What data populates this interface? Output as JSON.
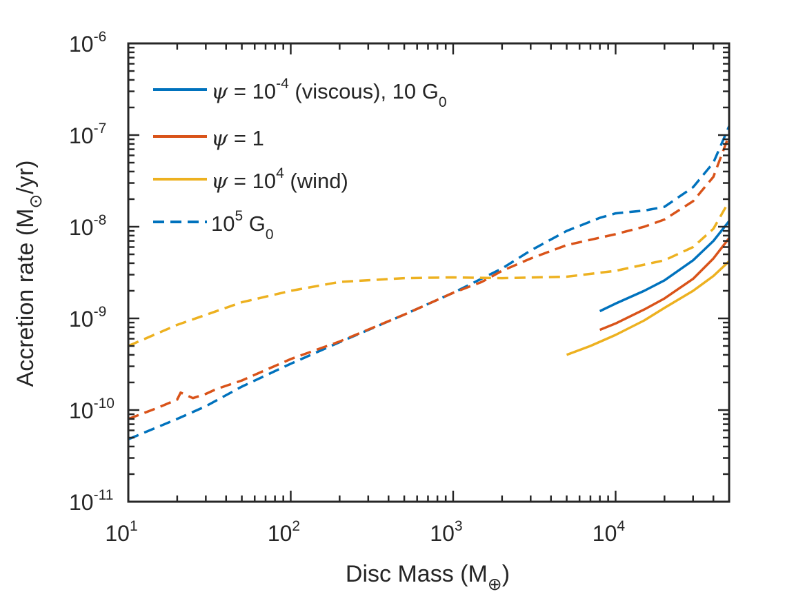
{
  "chart_data": {
    "type": "line",
    "title": "",
    "xscale": "log",
    "yscale": "log",
    "xlim": [
      10,
      50000
    ],
    "ylim": [
      1e-11,
      1e-06
    ],
    "xlabel": {
      "prefix": "Disc Mass (M",
      "subscript": "⊕",
      "suffix": ")"
    },
    "ylabel": {
      "prefix": "Accretion rate (M",
      "subscript": "⊙",
      "suffix": "/yr)"
    },
    "x_ticks": [
      {
        "base": "10",
        "exp": "1",
        "value": 10
      },
      {
        "base": "10",
        "exp": "2",
        "value": 100
      },
      {
        "base": "10",
        "exp": "3",
        "value": 1000
      },
      {
        "base": "10",
        "exp": "4",
        "value": 10000
      }
    ],
    "y_ticks": [
      {
        "base": "10",
        "exp": "-11",
        "value": 1e-11
      },
      {
        "base": "10",
        "exp": "-10",
        "value": 1e-10
      },
      {
        "base": "10",
        "exp": "-9",
        "value": 1e-09
      },
      {
        "base": "10",
        "exp": "-8",
        "value": 1e-08
      },
      {
        "base": "10",
        "exp": "-7",
        "value": 1e-07
      },
      {
        "base": "10",
        "exp": "-6",
        "value": 1e-06
      }
    ],
    "grid": false,
    "legend_position": "top-left",
    "legend": [
      {
        "psi": "ψ",
        "text1": " = 10",
        "sup": "-4",
        "text2": " (viscous), 10 G",
        "sub": "0",
        "color": "#0072BD",
        "dash": "solid"
      },
      {
        "psi": "ψ",
        "text1": " = 1",
        "sup": "",
        "text2": "",
        "sub": "",
        "color": "#D95319",
        "dash": "solid"
      },
      {
        "psi": "ψ",
        "text1": " = 10",
        "sup": "4",
        "text2": " (wind)",
        "sub": "",
        "color": "#EDB120",
        "dash": "solid"
      },
      {
        "psi": "",
        "text1": "10",
        "sup": "5",
        "text2": " G",
        "sub": "0",
        "color": "#0072BD",
        "dash": "dashed"
      }
    ],
    "series": [
      {
        "name": "psi=1e-4 viscous, 10 G0",
        "color": "#0072BD",
        "dash": "solid",
        "x": [
          8000,
          10000,
          15000,
          20000,
          30000,
          40000,
          50000
        ],
        "y": [
          1.2e-09,
          1.45e-09,
          2e-09,
          2.6e-09,
          4.3e-09,
          7e-09,
          1.15e-08
        ]
      },
      {
        "name": "psi=1, 10 G0",
        "color": "#D95319",
        "dash": "solid",
        "x": [
          8000,
          10000,
          15000,
          20000,
          30000,
          40000,
          50000
        ],
        "y": [
          7.5e-10,
          8.8e-10,
          1.25e-09,
          1.65e-09,
          2.7e-09,
          4.5e-09,
          7.5e-09
        ]
      },
      {
        "name": "psi=1e4 wind, 10 G0",
        "color": "#EDB120",
        "dash": "solid",
        "x": [
          5000,
          7000,
          10000,
          15000,
          20000,
          30000,
          40000,
          50000
        ],
        "y": [
          4e-10,
          5e-10,
          6.6e-10,
          9.5e-10,
          1.3e-09,
          2e-09,
          2.9e-09,
          4.2e-09
        ]
      },
      {
        "name": "psi=1e-4 viscous, 1e5 G0",
        "color": "#0072BD",
        "dash": "dashed",
        "x": [
          10,
          20,
          30,
          50,
          100,
          200,
          500,
          1000,
          2000,
          3000,
          5000,
          8000,
          10000,
          15000,
          20000,
          30000,
          40000,
          50000
        ],
        "y": [
          4.8e-11,
          8e-11,
          1.1e-10,
          1.8e-10,
          3.2e-10,
          5.5e-10,
          1.1e-09,
          1.9e-09,
          3.5e-09,
          5.5e-09,
          9e-09,
          1.25e-08,
          1.4e-08,
          1.5e-08,
          1.65e-08,
          2.7e-08,
          5e-08,
          1.25e-07
        ]
      },
      {
        "name": "psi=1, 1e5 G0",
        "color": "#D95319",
        "dash": "dashed",
        "x": [
          10,
          15,
          20,
          21,
          25,
          30,
          35,
          50,
          100,
          200,
          500,
          1000,
          1500,
          2000,
          3000,
          5000,
          10000,
          15000,
          20000,
          30000,
          40000,
          50000
        ],
        "y": [
          8e-11,
          1.05e-10,
          1.3e-10,
          1.55e-10,
          1.35e-10,
          1.5e-10,
          1.7e-10,
          2.1e-10,
          3.6e-10,
          5.6e-10,
          1.1e-09,
          1.9e-09,
          2.5e-09,
          3.3e-09,
          4.5e-09,
          6.3e-09,
          8.3e-09,
          1e-08,
          1.2e-08,
          1.9e-08,
          3.5e-08,
          1e-07
        ]
      },
      {
        "name": "psi=1e4 wind, 1e5 G0",
        "color": "#EDB120",
        "dash": "dashed",
        "x": [
          10,
          20,
          50,
          100,
          200,
          500,
          1000,
          2000,
          5000,
          10000,
          20000,
          30000,
          40000,
          50000
        ],
        "y": [
          5e-10,
          8.5e-10,
          1.5e-09,
          2e-09,
          2.5e-09,
          2.75e-09,
          2.8e-09,
          2.75e-09,
          2.85e-09,
          3.3e-09,
          4.3e-09,
          6e-09,
          9.5e-09,
          1.9e-08
        ]
      }
    ]
  }
}
